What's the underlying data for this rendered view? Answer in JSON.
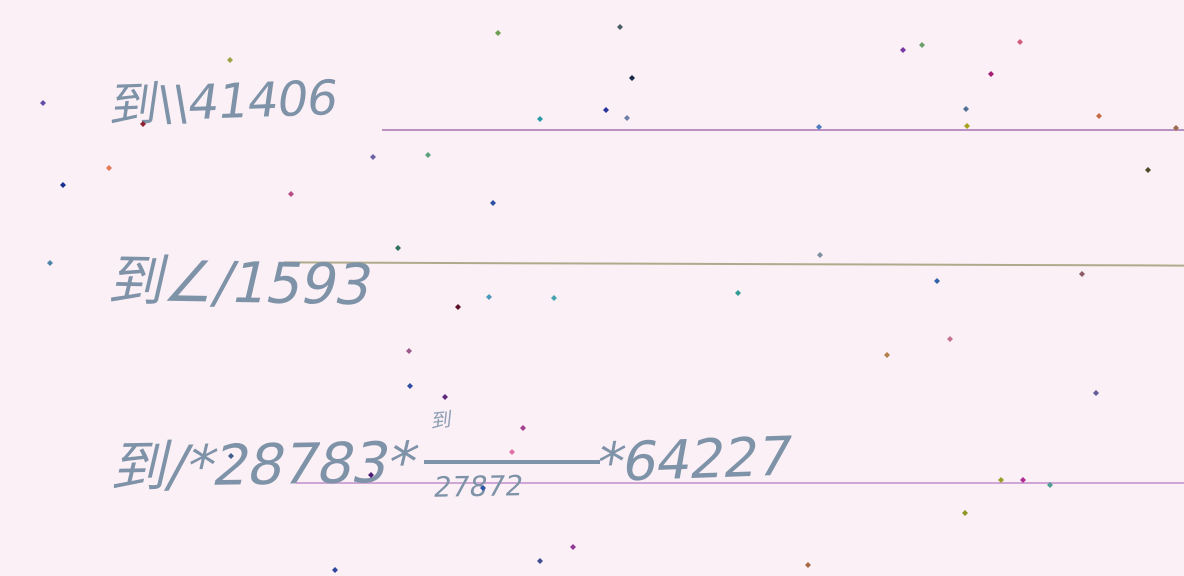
{
  "lines": {
    "line1": "到\\\\41406",
    "line2": "到∠/1593",
    "line3_left": "到/*28783*",
    "line3_fraction_top": "到",
    "line3_fraction_bottom": "27872",
    "line3_right": "*64227"
  },
  "colors": {
    "background": "#fcf0f7",
    "ink": "#7f93a8",
    "rule_purple": "#b992c3",
    "rule_olive": "#afaa8b",
    "rule_pink": "#d0a6d6"
  }
}
